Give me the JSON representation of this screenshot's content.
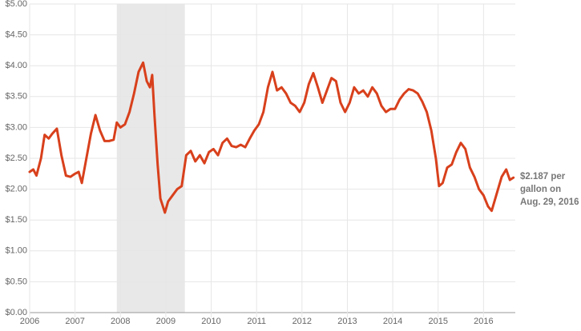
{
  "chart_data": {
    "type": "line",
    "color": "#d8401c",
    "grid": true,
    "xlim": [
      2006,
      2016.7
    ],
    "xticks": [
      2006,
      2007,
      2008,
      2009,
      2010,
      2011,
      2012,
      2013,
      2014,
      2015,
      2016
    ],
    "ylim": [
      0,
      5
    ],
    "yticks": [
      {
        "value": 0,
        "label": "$0.00"
      },
      {
        "value": 0.5,
        "label": "$0.50"
      },
      {
        "value": 1,
        "label": "$1.00"
      },
      {
        "value": 1.5,
        "label": "$1.50"
      },
      {
        "value": 2,
        "label": "$2.00"
      },
      {
        "value": 2.5,
        "label": "$2.50"
      },
      {
        "value": 3,
        "label": "$3.00"
      },
      {
        "value": 3.5,
        "label": "$3.50"
      },
      {
        "value": 4,
        "label": "$4.00"
      },
      {
        "value": 4.5,
        "label": "$4.50"
      },
      {
        "value": 5,
        "label": "$5.00"
      }
    ],
    "shaded_ranges": [
      [
        2007.92,
        2009.42
      ]
    ],
    "shade_color": "#e8e8e8",
    "annotation": [
      "$2.187 per",
      "gallon on",
      "Aug. 29, 2016"
    ],
    "x": [
      2006.0,
      2006.08,
      2006.15,
      2006.25,
      2006.33,
      2006.42,
      2006.5,
      2006.6,
      2006.7,
      2006.8,
      2006.9,
      2007.0,
      2007.08,
      2007.15,
      2007.25,
      2007.35,
      2007.45,
      2007.55,
      2007.65,
      2007.75,
      2007.85,
      2007.92,
      2008.0,
      2008.1,
      2008.2,
      2008.3,
      2008.4,
      2008.5,
      2008.58,
      2008.65,
      2008.7,
      2008.75,
      2008.82,
      2008.88,
      2008.98,
      2009.05,
      2009.15,
      2009.25,
      2009.35,
      2009.45,
      2009.55,
      2009.65,
      2009.75,
      2009.85,
      2009.95,
      2010.05,
      2010.15,
      2010.25,
      2010.35,
      2010.45,
      2010.55,
      2010.65,
      2010.75,
      2010.85,
      2010.95,
      2011.05,
      2011.15,
      2011.25,
      2011.35,
      2011.45,
      2011.55,
      2011.65,
      2011.75,
      2011.85,
      2011.95,
      2012.05,
      2012.15,
      2012.25,
      2012.35,
      2012.45,
      2012.55,
      2012.65,
      2012.75,
      2012.85,
      2012.95,
      2013.05,
      2013.15,
      2013.25,
      2013.35,
      2013.45,
      2013.55,
      2013.65,
      2013.75,
      2013.85,
      2013.95,
      2014.05,
      2014.15,
      2014.25,
      2014.35,
      2014.45,
      2014.55,
      2014.65,
      2014.75,
      2014.85,
      2014.95,
      2015.02,
      2015.1,
      2015.2,
      2015.3,
      2015.4,
      2015.5,
      2015.6,
      2015.7,
      2015.8,
      2015.9,
      2016.0,
      2016.1,
      2016.18,
      2016.3,
      2016.4,
      2016.5,
      2016.58,
      2016.66
    ],
    "values": [
      2.28,
      2.32,
      2.22,
      2.5,
      2.88,
      2.82,
      2.9,
      2.98,
      2.55,
      2.22,
      2.2,
      2.25,
      2.28,
      2.1,
      2.5,
      2.9,
      3.2,
      2.95,
      2.78,
      2.78,
      2.8,
      3.08,
      3.0,
      3.05,
      3.25,
      3.55,
      3.9,
      4.05,
      3.75,
      3.65,
      3.85,
      3.2,
      2.4,
      1.85,
      1.62,
      1.8,
      1.9,
      2.0,
      2.05,
      2.55,
      2.62,
      2.45,
      2.55,
      2.42,
      2.6,
      2.65,
      2.55,
      2.75,
      2.82,
      2.7,
      2.68,
      2.72,
      2.68,
      2.82,
      2.95,
      3.05,
      3.25,
      3.65,
      3.9,
      3.6,
      3.65,
      3.55,
      3.4,
      3.35,
      3.25,
      3.4,
      3.7,
      3.88,
      3.65,
      3.4,
      3.6,
      3.8,
      3.75,
      3.4,
      3.25,
      3.4,
      3.65,
      3.55,
      3.6,
      3.5,
      3.65,
      3.55,
      3.35,
      3.25,
      3.3,
      3.3,
      3.45,
      3.55,
      3.62,
      3.6,
      3.55,
      3.42,
      3.25,
      2.95,
      2.5,
      2.05,
      2.1,
      2.35,
      2.4,
      2.6,
      2.75,
      2.65,
      2.35,
      2.2,
      2.0,
      1.9,
      1.72,
      1.65,
      1.95,
      2.2,
      2.32,
      2.15,
      2.187
    ]
  }
}
